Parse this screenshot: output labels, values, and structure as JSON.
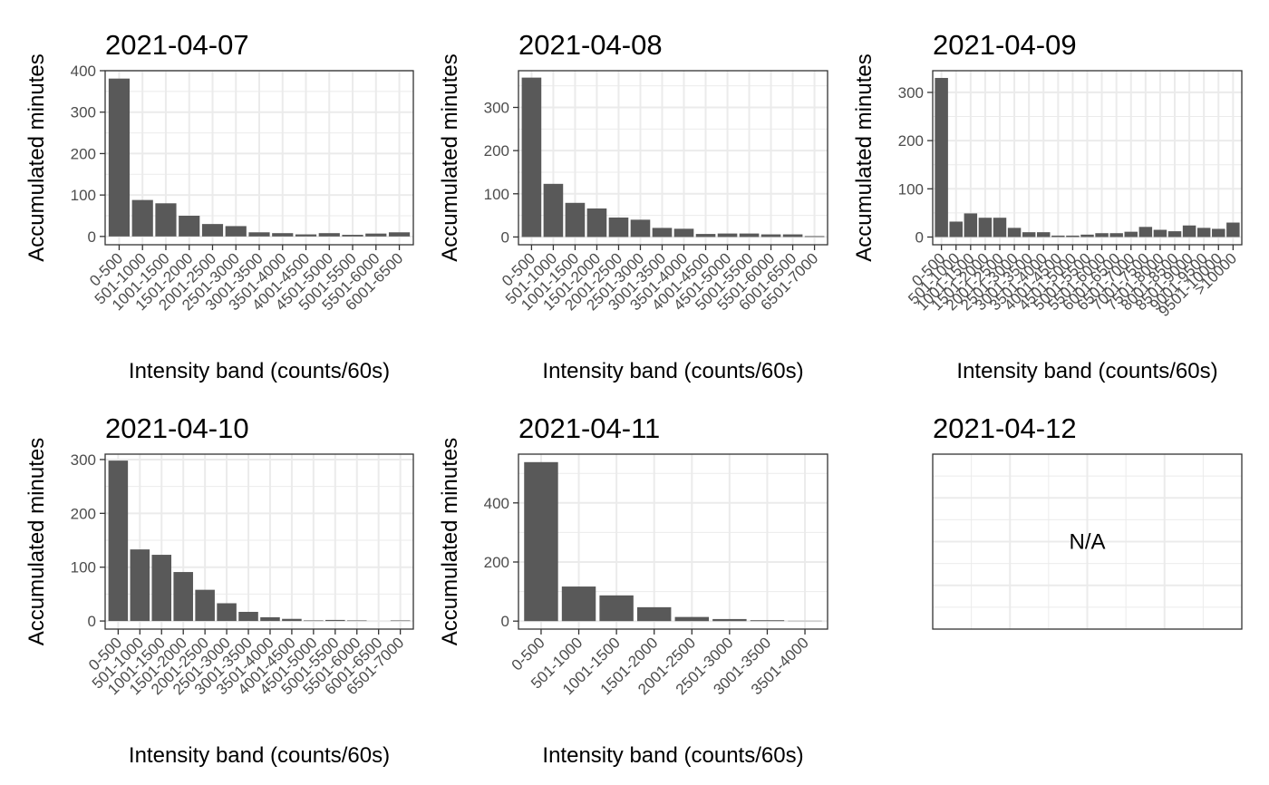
{
  "colors": {
    "bar": "#595959",
    "grid": "#ebebeb",
    "frame": "#333333",
    "tick_text": "#4d4d4d",
    "background": "#ffffff"
  },
  "chart_data": [
    {
      "type": "bar",
      "title": "2021-04-07",
      "xlabel": "Intensity band (counts/60s)",
      "ylabel": "Accumulated minutes",
      "ylim": [
        -20,
        400
      ],
      "yticks": [
        0,
        100,
        200,
        300,
        400
      ],
      "categories": [
        "0-500",
        "501-1000",
        "1001-1500",
        "1501-2000",
        "2001-2500",
        "2501-3000",
        "3001-3500",
        "3501-4000",
        "4001-4500",
        "4501-5000",
        "5001-5500",
        "5501-6000",
        "6001-6500"
      ],
      "values": [
        381,
        88,
        80,
        50,
        30,
        25,
        10,
        8,
        5,
        8,
        4,
        7,
        10
      ],
      "grid": true
    },
    {
      "type": "bar",
      "title": "2021-04-08",
      "xlabel": "Intensity band (counts/60s)",
      "ylabel": "Accumulated minutes",
      "ylim": [
        -18,
        385
      ],
      "yticks": [
        0,
        100,
        200,
        300
      ],
      "categories": [
        "0-500",
        "501-1000",
        "1001-1500",
        "1501-2000",
        "2001-2500",
        "2501-3000",
        "3001-3500",
        "3501-4000",
        "4001-4500",
        "4501-5000",
        "5001-5500",
        "5501-6000",
        "6001-6500",
        "6501-7000"
      ],
      "values": [
        369,
        123,
        79,
        66,
        45,
        40,
        21,
        19,
        7,
        8,
        8,
        6,
        6,
        2
      ],
      "grid": true
    },
    {
      "type": "bar",
      "title": "2021-04-09",
      "xlabel": "Intensity band (counts/60s)",
      "ylabel": "Accumulated minutes",
      "ylim": [
        -16,
        345
      ],
      "yticks": [
        0,
        100,
        200,
        300
      ],
      "categories": [
        "0-500",
        "501-1000",
        "1001-1500",
        "1501-2000",
        "2001-2500",
        "2501-3000",
        "3001-3500",
        "3501-4000",
        "4001-4500",
        "4501-5000",
        "5001-5500",
        "5501-6000",
        "6001-6500",
        "6501-7000",
        "7001-7500",
        "7501-8000",
        "8001-8500",
        "8501-9000",
        "9001-9500",
        "9501-10000",
        ">10000"
      ],
      "values": [
        330,
        32,
        49,
        40,
        40,
        19,
        10,
        10,
        3,
        3,
        5,
        8,
        8,
        11,
        21,
        15,
        12,
        24,
        19,
        17,
        30
      ],
      "grid": true
    },
    {
      "type": "bar",
      "title": "2021-04-10",
      "xlabel": "Intensity band (counts/60s)",
      "ylabel": "Accumulated minutes",
      "ylim": [
        -15,
        310
      ],
      "yticks": [
        0,
        100,
        200,
        300
      ],
      "categories": [
        "0-500",
        "501-1000",
        "1001-1500",
        "1501-2000",
        "2001-2500",
        "2501-3000",
        "3001-3500",
        "3501-4000",
        "4001-4500",
        "4501-5000",
        "5001-5500",
        "5501-6000",
        "6001-6500",
        "6501-7000"
      ],
      "values": [
        298,
        133,
        123,
        91,
        58,
        33,
        17,
        7,
        4,
        1,
        2,
        1,
        0,
        1
      ],
      "grid": true
    },
    {
      "type": "bar",
      "title": "2021-04-11",
      "xlabel": "Intensity band (counts/60s)",
      "ylabel": "Accumulated minutes",
      "ylim": [
        -27,
        565
      ],
      "yticks": [
        0,
        200,
        400
      ],
      "categories": [
        "0-500",
        "501-1000",
        "1001-1500",
        "1501-2000",
        "2001-2500",
        "2501-3000",
        "3001-3500",
        "3501-4000"
      ],
      "values": [
        538,
        117,
        87,
        47,
        14,
        7,
        3,
        1
      ],
      "grid": true
    },
    {
      "type": "bar",
      "title": "2021-04-12",
      "xlabel": "",
      "ylabel": "",
      "categories": [],
      "values": [],
      "annotation": "N/A",
      "grid": true
    }
  ]
}
